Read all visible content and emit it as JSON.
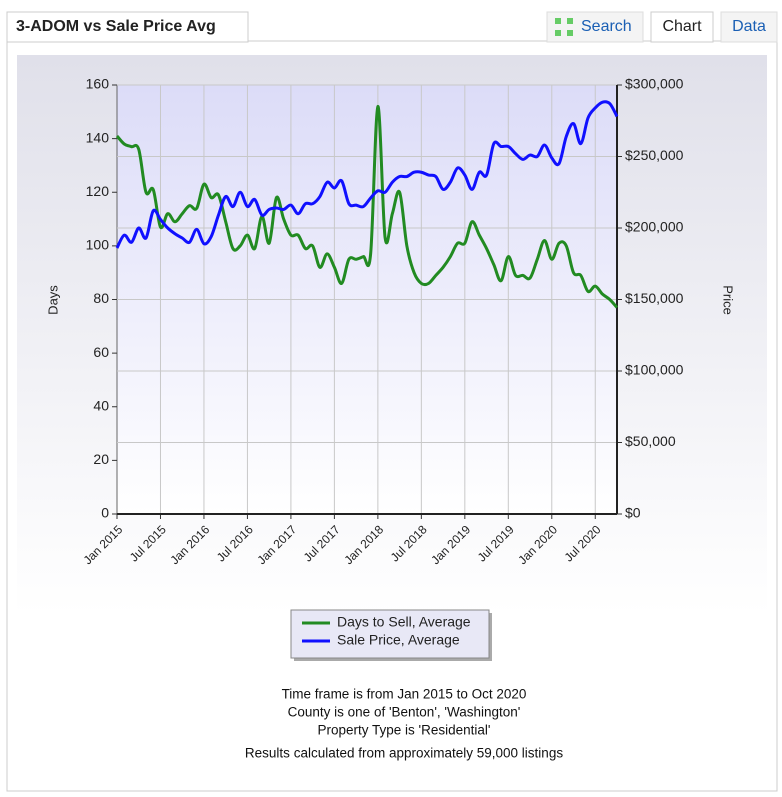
{
  "header": {
    "title": "3-ADOM vs Sale Price Avg",
    "tabs": [
      "Search",
      "Chart",
      "Data"
    ],
    "active_tab": 1
  },
  "chart_data": {
    "type": "line",
    "categories": [
      "Jan 2015",
      null,
      null,
      null,
      null,
      null,
      "Jul 2015",
      null,
      null,
      null,
      null,
      null,
      "Jan 2016",
      null,
      null,
      null,
      null,
      null,
      "Jul 2016",
      null,
      null,
      null,
      null,
      null,
      "Jan 2017",
      null,
      null,
      null,
      null,
      null,
      "Jul 2017",
      null,
      null,
      null,
      null,
      null,
      "Jan 2018",
      null,
      null,
      null,
      null,
      null,
      "Jul 2018",
      null,
      null,
      null,
      null,
      null,
      "Jan 2019",
      null,
      null,
      null,
      null,
      null,
      "Jul 2019",
      null,
      null,
      null,
      null,
      null,
      "Jan 2020",
      null,
      null,
      null,
      null,
      null,
      "Jul 2020",
      null,
      null,
      null
    ],
    "series": [
      {
        "name": "Days to Sell, Average",
        "color": "#228b22",
        "axis": "y",
        "values": [
          141,
          138,
          137,
          136,
          120,
          121,
          107,
          112,
          109,
          112,
          115,
          114,
          123,
          118,
          119,
          109,
          99,
          100,
          104,
          99,
          111,
          101,
          118,
          110,
          104,
          104,
          99,
          100,
          92,
          97,
          92,
          86,
          95,
          95,
          96,
          97,
          152,
          103,
          112,
          120,
          100,
          90,
          86,
          86,
          89,
          92,
          96,
          101,
          101,
          109,
          104,
          99,
          93,
          87,
          96,
          89,
          89,
          88,
          95,
          102,
          95,
          101,
          100,
          90,
          89,
          83,
          85,
          82,
          80,
          77
        ]
      },
      {
        "name": "Sale Price, Average",
        "color": "#1010ff",
        "axis": "y2",
        "values": [
          186000,
          195000,
          190000,
          200000,
          193000,
          212000,
          206000,
          200000,
          196000,
          193000,
          190000,
          199000,
          189000,
          194000,
          209000,
          222000,
          215000,
          225000,
          215000,
          220000,
          209000,
          213000,
          214000,
          213000,
          216000,
          210000,
          217000,
          217000,
          222000,
          232000,
          228000,
          233000,
          217000,
          216000,
          215000,
          221000,
          226000,
          225000,
          232000,
          236000,
          236000,
          239000,
          239000,
          237000,
          236000,
          227000,
          232000,
          242000,
          237000,
          227000,
          239000,
          237000,
          259000,
          257000,
          257000,
          252000,
          248000,
          251000,
          250000,
          258000,
          249000,
          245000,
          264000,
          273000,
          259000,
          277000,
          284000,
          288000,
          287000,
          278000
        ]
      }
    ],
    "ylabel": "Days",
    "y2label": "Price",
    "ylim": [
      0,
      160
    ],
    "yticks": [
      0,
      20,
      40,
      60,
      80,
      100,
      120,
      140,
      160
    ],
    "y2lim": [
      0,
      300000
    ],
    "y2ticks": [
      {
        "value": 0,
        "label": "$0"
      },
      {
        "value": 50000,
        "label": "$50,000"
      },
      {
        "value": 100000,
        "label": "$100,000"
      },
      {
        "value": 150000,
        "label": "$150,000"
      },
      {
        "value": 200000,
        "label": "$200,000"
      },
      {
        "value": 250000,
        "label": "$250,000"
      },
      {
        "value": 300000,
        "label": "$300,000"
      }
    ],
    "grid": true,
    "legend": "bottom"
  },
  "notes": [
    "Time frame is from Jan 2015 to Oct 2020",
    "County is one of 'Benton', 'Washington'",
    "Property Type is 'Residential'",
    "Results calculated from approximately 59,000 listings"
  ]
}
